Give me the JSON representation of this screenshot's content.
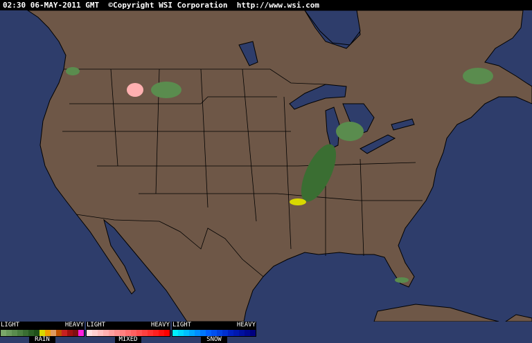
{
  "header": {
    "time": "02:30 06-MAY-2011 GMT",
    "copyright": "©Copyright WSI Corporation",
    "url": "http://www.wsi.com"
  },
  "map": {
    "region": "Continental United States radar",
    "colors": {
      "ocean": "#2e3d6b",
      "land": "#6e5747",
      "borders": "#000000"
    }
  },
  "legend": [
    {
      "name": "RAIN",
      "light": "LIGHT",
      "heavy": "HEAVY",
      "colors": [
        "#7aa86a",
        "#6a9a5c",
        "#5a8c4e",
        "#4a7e40",
        "#3a6e32",
        "#2a5e24",
        "#1e5018",
        "#d8d800",
        "#f0a000",
        "#e09a60",
        "#c05000",
        "#c82020",
        "#a01010",
        "#801010",
        "#ff20e0"
      ]
    },
    {
      "name": "MIXED",
      "light": "LIGHT",
      "heavy": "HEAVY",
      "colors": [
        "#ffe0e0",
        "#ffd0d0",
        "#ffc0c0",
        "#ffb0b0",
        "#ffa0a0",
        "#ff9090",
        "#ff8080",
        "#ff7070",
        "#ff6060",
        "#ff5050",
        "#ff4040",
        "#ff3030",
        "#ff2020",
        "#ff1010",
        "#ff0000"
      ]
    },
    {
      "name": "SNOW",
      "light": "LIGHT",
      "heavy": "HEAVY",
      "colors": [
        "#00f0ff",
        "#00d8ff",
        "#00c0ff",
        "#00a8ff",
        "#0090ff",
        "#0078ff",
        "#0060ff",
        "#0050f0",
        "#0040e0",
        "#0030d0",
        "#0020c0",
        "#0018b0",
        "#0010a0",
        "#000890",
        "#000080"
      ]
    }
  ]
}
